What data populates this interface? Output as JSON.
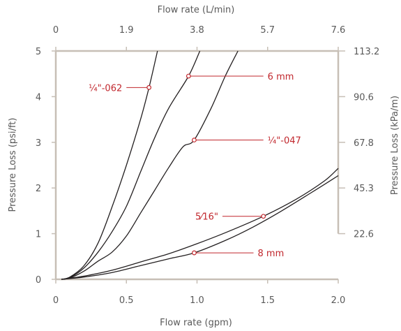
{
  "chart_data": {
    "type": "line",
    "xlabel": "Flow rate (gpm)",
    "ylabel": "Pressure Loss (psi/ft)",
    "x2label": "Flow rate (L/min)",
    "y2label": "Pressure Loss (kPa/m)",
    "xlim": [
      0,
      2.0
    ],
    "ylim": [
      0,
      5
    ],
    "grid": false,
    "x_ticks": [
      {
        "value": 0,
        "label": "0"
      },
      {
        "value": 0.5,
        "label": "0.5"
      },
      {
        "value": 1.0,
        "label": "1.0"
      },
      {
        "value": 1.5,
        "label": "1.5"
      },
      {
        "value": 2.0,
        "label": "2.0"
      }
    ],
    "y_ticks": [
      {
        "value": 0,
        "label": "0"
      },
      {
        "value": 1,
        "label": "1"
      },
      {
        "value": 2,
        "label": "2"
      },
      {
        "value": 3,
        "label": "3"
      },
      {
        "value": 4,
        "label": "4"
      },
      {
        "value": 5,
        "label": "5"
      }
    ],
    "x2_ticks": [
      {
        "value": 0,
        "label": "0"
      },
      {
        "value": 0.5,
        "label": "1.9"
      },
      {
        "value": 1.0,
        "label": "3.8"
      },
      {
        "value": 1.5,
        "label": "5.7"
      },
      {
        "value": 2.0,
        "label": "7.6"
      }
    ],
    "y2_ticks": [
      {
        "value": 1,
        "label": "22.6"
      },
      {
        "value": 2,
        "label": "45.3"
      },
      {
        "value": 3,
        "label": "67.8"
      },
      {
        "value": 4,
        "label": "90.6"
      },
      {
        "value": 5,
        "label": "113.2"
      }
    ],
    "series": [
      {
        "name": "¼\"-062",
        "points": [
          [
            0.04,
            0
          ],
          [
            0.1,
            0.05
          ],
          [
            0.2,
            0.3
          ],
          [
            0.3,
            0.8
          ],
          [
            0.4,
            1.6
          ],
          [
            0.5,
            2.5
          ],
          [
            0.6,
            3.5
          ],
          [
            0.66,
            4.2
          ],
          [
            0.72,
            5.0
          ]
        ]
      },
      {
        "name": "6 mm",
        "points": [
          [
            0.04,
            0
          ],
          [
            0.1,
            0.04
          ],
          [
            0.2,
            0.25
          ],
          [
            0.3,
            0.6
          ],
          [
            0.4,
            1.05
          ],
          [
            0.5,
            1.6
          ],
          [
            0.6,
            2.35
          ],
          [
            0.7,
            3.1
          ],
          [
            0.8,
            3.75
          ],
          [
            0.94,
            4.45
          ],
          [
            1.02,
            5.0
          ]
        ]
      },
      {
        "name": "¼\"-047",
        "points": [
          [
            0.04,
            0
          ],
          [
            0.1,
            0.03
          ],
          [
            0.2,
            0.18
          ],
          [
            0.3,
            0.4
          ],
          [
            0.4,
            0.6
          ],
          [
            0.5,
            0.95
          ],
          [
            0.6,
            1.45
          ],
          [
            0.7,
            1.95
          ],
          [
            0.8,
            2.45
          ],
          [
            0.9,
            2.9
          ],
          [
            0.98,
            3.05
          ],
          [
            1.1,
            3.75
          ],
          [
            1.2,
            4.45
          ],
          [
            1.29,
            5.0
          ]
        ]
      },
      {
        "name": "5⁄16\"",
        "points": [
          [
            0.04,
            0
          ],
          [
            0.2,
            0.07
          ],
          [
            0.4,
            0.2
          ],
          [
            0.6,
            0.38
          ],
          [
            0.8,
            0.56
          ],
          [
            1.0,
            0.78
          ],
          [
            1.2,
            1.02
          ],
          [
            1.47,
            1.38
          ],
          [
            1.7,
            1.75
          ],
          [
            1.9,
            2.15
          ],
          [
            2.0,
            2.43
          ]
        ]
      },
      {
        "name": "8 mm",
        "points": [
          [
            0.04,
            0
          ],
          [
            0.2,
            0.05
          ],
          [
            0.4,
            0.15
          ],
          [
            0.6,
            0.3
          ],
          [
            0.8,
            0.45
          ],
          [
            0.98,
            0.58
          ],
          [
            1.2,
            0.85
          ],
          [
            1.4,
            1.15
          ],
          [
            1.6,
            1.5
          ],
          [
            1.8,
            1.88
          ],
          [
            2.0,
            2.27
          ]
        ]
      }
    ],
    "annotations": [
      {
        "label": "¼\"-062",
        "point": [
          0.66,
          4.2
        ],
        "line_to": [
          0.5,
          4.2
        ]
      },
      {
        "label": "6 mm",
        "point": [
          0.94,
          4.45
        ],
        "line_to": [
          1.47,
          4.45
        ]
      },
      {
        "label": "¼\"-047",
        "point": [
          0.98,
          3.05
        ],
        "line_to": [
          1.47,
          3.05
        ]
      },
      {
        "label": "5⁄16\"",
        "point": [
          1.47,
          1.38
        ],
        "line_to": [
          1.18,
          1.38
        ]
      },
      {
        "label": "8 mm",
        "point": [
          0.98,
          0.58
        ],
        "line_to": [
          1.4,
          0.58
        ]
      }
    ]
  }
}
